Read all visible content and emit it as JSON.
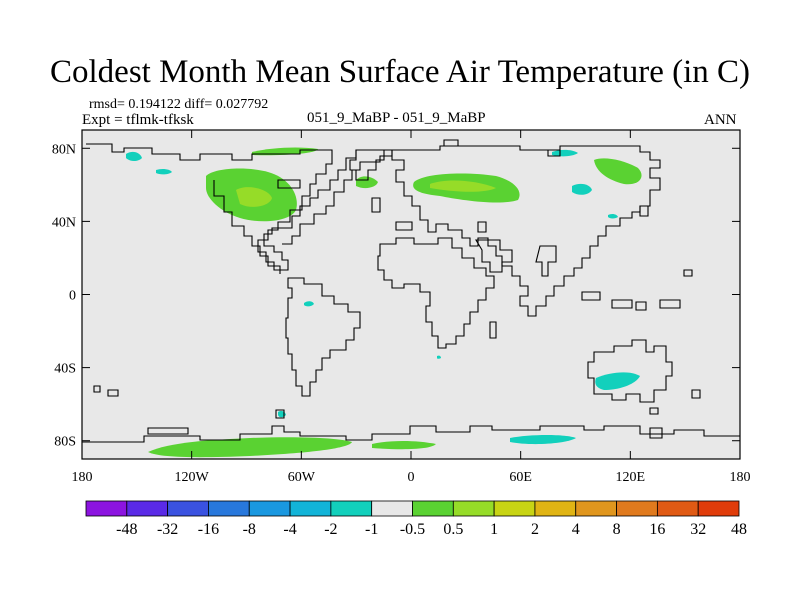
{
  "title": "Coldest Month Mean Surface Air Temperature (in C)",
  "stats": {
    "rmsd_text": "rmsd= 0.194122  diff= 0.027792"
  },
  "expt_text": "Expt = tflmk-tfksk",
  "center_text": "051_9_MaBP - 051_9_MaBP",
  "season_text": "ANN",
  "colors": {
    "land": "#e8e8e8",
    "coast": "#000000",
    "frame": "#000000"
  },
  "chart_data": {
    "type": "heatmap",
    "title": "Coldest Month Mean Surface Air Temperature (in C)",
    "field": "difference (C)",
    "xlim": [
      -180,
      180
    ],
    "ylim": [
      -90,
      90
    ],
    "x_ticks": [
      {
        "value": -180,
        "label": "180"
      },
      {
        "value": -120,
        "label": "120W"
      },
      {
        "value": -60,
        "label": "60W"
      },
      {
        "value": 0,
        "label": "0"
      },
      {
        "value": 60,
        "label": "60E"
      },
      {
        "value": 120,
        "label": "120E"
      },
      {
        "value": 180,
        "label": "180"
      }
    ],
    "y_ticks": [
      {
        "value": 80,
        "label": "80N"
      },
      {
        "value": 40,
        "label": "40N"
      },
      {
        "value": 0,
        "label": "0"
      },
      {
        "value": -40,
        "label": "40S"
      },
      {
        "value": -80,
        "label": "80S"
      }
    ],
    "colorbar": {
      "colors": [
        "#8c14e0",
        "#5a2ae6",
        "#3a52e0",
        "#2878dc",
        "#1a98e0",
        "#12b4d8",
        "#12d0bc",
        "#e8e8e8",
        "#5ad232",
        "#96dc28",
        "#c8d414",
        "#e0b414",
        "#e0961e",
        "#e07a1e",
        "#e05a14",
        "#e03c0a"
      ],
      "labels": [
        "-48",
        "-32",
        "-16",
        "-8",
        "-4",
        "-2",
        "-1",
        "-0.5",
        "0.5",
        "1",
        "2",
        "4",
        "8",
        "16",
        "32",
        "48"
      ]
    },
    "anomalies": [
      {
        "region": "North America",
        "lon": -95,
        "lat": 53,
        "sign": "positive",
        "level": "0.5 to 2"
      },
      {
        "region": "Northern Europe / Siberia",
        "lon": 38,
        "lat": 57,
        "sign": "positive",
        "level": "0.5 to 2"
      },
      {
        "region": "Arctic coast",
        "lon": -62,
        "lat": 81,
        "sign": "positive",
        "level": "0.5 to 1"
      },
      {
        "region": "Scandinavia",
        "lon": -22,
        "lat": 64,
        "sign": "positive",
        "level": "0.5 to 1"
      },
      {
        "region": "East Siberia",
        "lon": 110,
        "lat": 66,
        "sign": "positive",
        "level": "0.5 to 1"
      },
      {
        "region": "Antarctica (west)",
        "lon": -100,
        "lat": -84,
        "sign": "positive",
        "level": "0.5 to 2"
      },
      {
        "region": "Antarctica (central)",
        "lon": 0,
        "lat": -79,
        "sign": "positive",
        "level": "0.5 to 1"
      },
      {
        "region": "Antarctica (east)",
        "lon": 75,
        "lat": -80,
        "sign": "negative",
        "level": "-1 to -0.5"
      },
      {
        "region": "Australia",
        "lon": 112,
        "lat": -48,
        "sign": "negative",
        "level": "-1 to -0.5"
      },
      {
        "region": "Central Asia",
        "lon": 95,
        "lat": 57,
        "sign": "negative",
        "level": "-1 to -0.5"
      },
      {
        "region": "Arctic",
        "lon": 86,
        "lat": 82,
        "sign": "negative",
        "level": "-1 to -0.5"
      },
      {
        "region": "Alaska",
        "lon": -145,
        "lat": 68,
        "sign": "negative",
        "level": "-1 to -0.5"
      },
      {
        "region": "South America",
        "lon": -56,
        "lat": 2,
        "sign": "negative",
        "level": "-1 to -0.5"
      }
    ]
  }
}
